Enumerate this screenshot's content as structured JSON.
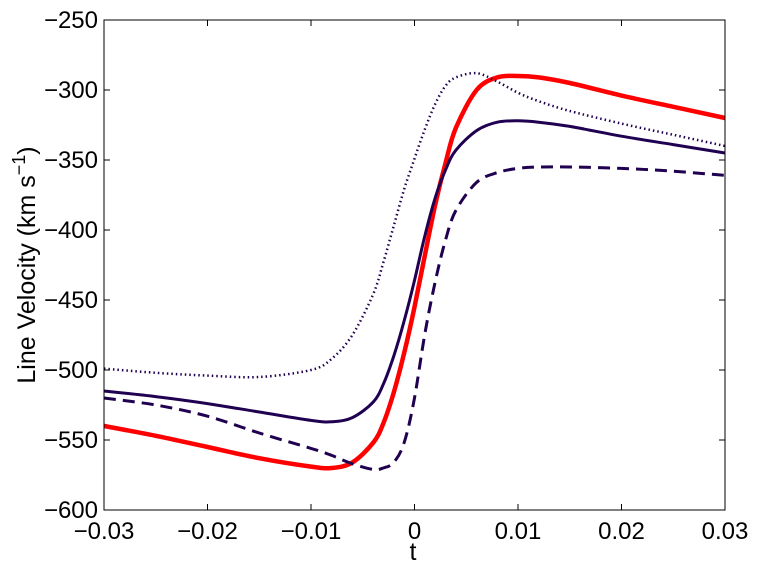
{
  "chart_data": {
    "type": "line",
    "xlabel": "t",
    "ylabel": "Line Velocity (km s",
    "ylabel_sup": "−1",
    "ylabel_tail": ")",
    "xlim": [
      -0.03,
      0.03
    ],
    "ylim": [
      -600,
      -250
    ],
    "x_ticks": [
      -0.03,
      -0.02,
      -0.01,
      0,
      0.01,
      0.02,
      0.03
    ],
    "x_tick_labels": [
      "−0.03",
      "−0.02",
      "−0.01",
      "0",
      "0.01",
      "0.02",
      "0.03"
    ],
    "y_ticks": [
      -600,
      -550,
      -500,
      -450,
      -400,
      -350,
      -300,
      -250
    ],
    "y_tick_labels": [
      "−600",
      "−550",
      "−500",
      "−450",
      "−400",
      "−350",
      "−300",
      "−250"
    ],
    "grid": false,
    "legend": "none",
    "x": [
      -0.03,
      -0.025,
      -0.02,
      -0.015,
      -0.01,
      -0.008,
      -0.006,
      -0.004,
      -0.003,
      -0.002,
      -0.001,
      0,
      0.001,
      0.002,
      0.003,
      0.004,
      0.006,
      0.008,
      0.01,
      0.012,
      0.015,
      0.02,
      0.025,
      0.03
    ],
    "series": [
      {
        "color": "#ff0000",
        "style": "solid",
        "width": 4.5,
        "values": [
          -540,
          -547,
          -555,
          -563,
          -569,
          -570,
          -566,
          -552,
          -538,
          -516,
          -488,
          -455,
          -418,
          -382,
          -352,
          -327,
          -300,
          -291,
          -290,
          -291,
          -295,
          -304,
          -312,
          -320
        ]
      },
      {
        "color": "#200050",
        "style": "solid",
        "width": 3,
        "values": [
          -515,
          -519,
          -524,
          -530,
          -536,
          -537,
          -534,
          -523,
          -510,
          -490,
          -465,
          -436,
          -404,
          -377,
          -357,
          -343,
          -329,
          -323,
          -322,
          -323,
          -326,
          -333,
          -339,
          -345
        ]
      },
      {
        "color": "#200050",
        "style": "dashed",
        "width": 3,
        "values": [
          -520,
          -525,
          -533,
          -545,
          -556,
          -561,
          -567,
          -571,
          -570,
          -566,
          -552,
          -520,
          -474,
          -437,
          -407,
          -386,
          -366,
          -359,
          -356,
          -355,
          -355,
          -356,
          -358,
          -361
        ]
      },
      {
        "color": "#200050",
        "style": "dotted",
        "width": 2.5,
        "values": [
          -499,
          -502,
          -504,
          -505,
          -500,
          -492,
          -475,
          -446,
          -423,
          -397,
          -371,
          -349,
          -328,
          -310,
          -297,
          -291,
          -288,
          -294,
          -302,
          -308,
          -315,
          -324,
          -332,
          -340
        ]
      }
    ]
  }
}
